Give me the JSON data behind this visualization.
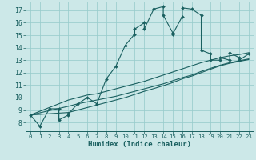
{
  "xlabel": "Humidex (Indice chaleur)",
  "xlim": [
    -0.5,
    23.5
  ],
  "ylim": [
    7.3,
    17.7
  ],
  "yticks": [
    8,
    9,
    10,
    11,
    12,
    13,
    14,
    15,
    16,
    17
  ],
  "xticks": [
    0,
    1,
    2,
    3,
    4,
    5,
    6,
    7,
    8,
    9,
    10,
    11,
    12,
    13,
    14,
    15,
    16,
    17,
    18,
    19,
    20,
    21,
    22,
    23
  ],
  "bg_color": "#cce8e8",
  "grid_color": "#99cccc",
  "line_color": "#1a6060",
  "series1_x": [
    0,
    1,
    2,
    3,
    3,
    4,
    4,
    5,
    6,
    7,
    8,
    9,
    10,
    11,
    11,
    12,
    12,
    13,
    14,
    14,
    15,
    15,
    16,
    16,
    17,
    18,
    18,
    19,
    19,
    20,
    20,
    21,
    21,
    22,
    22,
    23
  ],
  "series1_y": [
    8.6,
    7.7,
    9.1,
    9.1,
    8.2,
    8.6,
    8.7,
    9.5,
    10.0,
    9.5,
    11.5,
    12.5,
    14.2,
    15.1,
    15.5,
    16.0,
    15.5,
    17.1,
    17.3,
    16.6,
    15.2,
    15.1,
    16.5,
    17.2,
    17.1,
    16.6,
    13.8,
    13.5,
    13.0,
    13.0,
    13.2,
    13.0,
    13.6,
    13.2,
    13.0,
    13.5
  ],
  "series2_x": [
    0,
    4,
    5,
    6,
    7,
    8,
    9,
    10,
    11,
    12,
    13,
    14,
    15,
    16,
    17,
    18,
    19,
    20,
    21,
    22,
    23
  ],
  "series2_y": [
    8.6,
    9.8,
    10.0,
    10.2,
    10.3,
    10.5,
    10.7,
    10.9,
    11.1,
    11.3,
    11.55,
    11.8,
    12.05,
    12.3,
    12.55,
    12.8,
    13.0,
    13.2,
    13.35,
    13.45,
    13.6
  ],
  "series3_x": [
    0,
    4,
    5,
    6,
    7,
    8,
    9,
    10,
    11,
    12,
    13,
    14,
    15,
    16,
    17,
    18,
    19,
    20,
    21,
    22,
    23
  ],
  "series3_y": [
    8.6,
    9.3,
    9.5,
    9.65,
    9.8,
    9.95,
    10.1,
    10.3,
    10.5,
    10.7,
    10.9,
    11.1,
    11.35,
    11.6,
    11.8,
    12.1,
    12.35,
    12.6,
    12.8,
    12.95,
    13.1
  ],
  "series4_x": [
    0,
    4,
    5,
    6,
    7,
    8,
    9,
    10,
    11,
    12,
    13,
    14,
    15,
    16,
    17,
    18,
    19,
    20,
    21,
    22,
    23
  ],
  "series4_y": [
    8.6,
    8.8,
    9.0,
    9.2,
    9.4,
    9.6,
    9.8,
    10.0,
    10.25,
    10.5,
    10.72,
    10.95,
    11.2,
    11.5,
    11.72,
    12.0,
    12.28,
    12.55,
    12.75,
    12.9,
    13.05
  ]
}
